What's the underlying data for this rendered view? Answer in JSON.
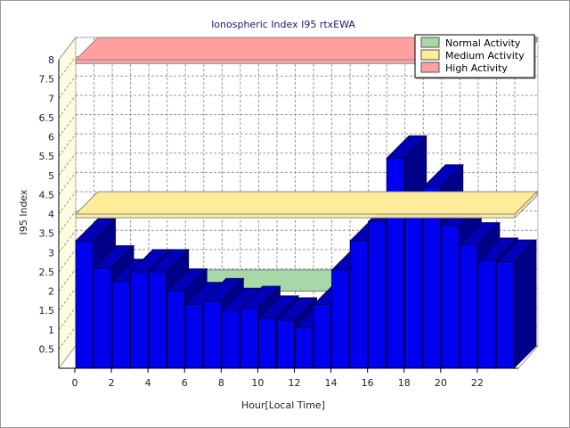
{
  "chart_data": {
    "type": "bar",
    "title": "Ionospheric Index I95 rtxEWA",
    "xlabel": "Hour[Local Time]",
    "ylabel": "I95 Index",
    "ylim": [
      0,
      8
    ],
    "yticks": [
      "0.5",
      "1",
      "1.5",
      "2",
      "2.5",
      "3",
      "3.5",
      "4",
      "4.5",
      "5",
      "5.5",
      "6",
      "6.5",
      "7",
      "7.5",
      "8"
    ],
    "xticks": [
      "0",
      "2",
      "4",
      "6",
      "8",
      "10",
      "12",
      "14",
      "16",
      "18",
      "20",
      "22"
    ],
    "grid": true,
    "legend_position": "top-right",
    "bar_color": "#0000ee",
    "x": [
      0,
      1,
      2,
      3,
      4,
      5,
      6,
      7,
      8,
      9,
      10,
      11,
      12,
      13,
      14,
      15,
      16,
      17,
      18,
      19,
      20,
      21,
      22,
      23
    ],
    "values": [
      3.3,
      2.6,
      2.25,
      2.5,
      2.5,
      2.0,
      1.65,
      1.75,
      1.5,
      1.55,
      1.3,
      1.25,
      1.05,
      1.65,
      2.55,
      3.3,
      3.8,
      5.45,
      4.2,
      4.7,
      3.7,
      3.2,
      2.8,
      2.75
    ],
    "bands": [
      {
        "name": "Normal Activity",
        "from": 2.0,
        "to": 2.55,
        "x_from": 0,
        "x_to": 14,
        "color": "#a8d8a8"
      },
      {
        "name": "Medium Activity",
        "from": 3.9,
        "to": 4.0,
        "x_from": 0,
        "x_to": 24,
        "color": "#ffec99"
      },
      {
        "name": "High Activity",
        "from": 7.9,
        "to": 8.0,
        "x_from": 0,
        "x_to": 24,
        "color": "#ff9f9f"
      }
    ]
  }
}
